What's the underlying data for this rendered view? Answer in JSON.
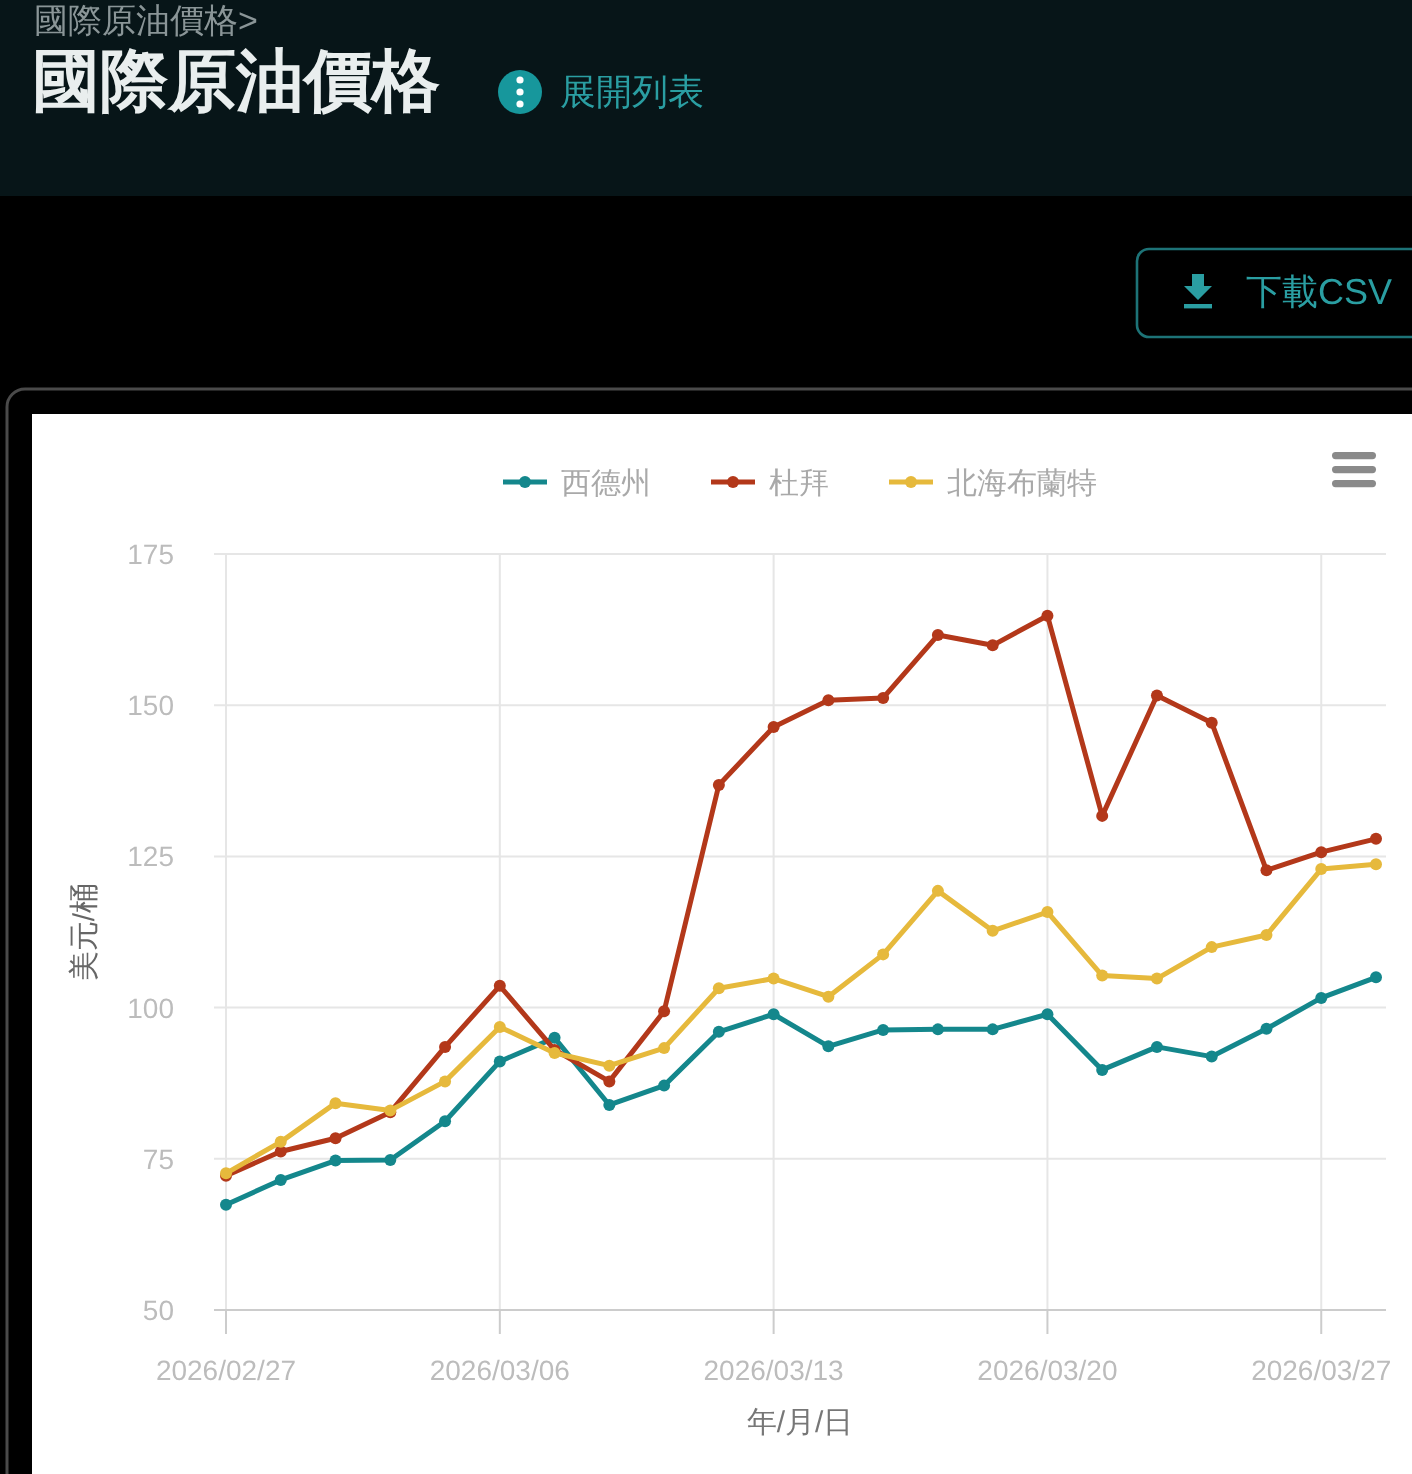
{
  "chart_data": {
    "type": "line",
    "title": "國際原油價格",
    "annotations": [
      "國際原油價格>",
      "展開列表",
      "下載CSV"
    ],
    "xlabel": "年/月/日",
    "ylabel": "美元/桶",
    "categories": [
      "2026/02/27",
      null,
      null,
      null,
      null,
      "2026/03/06",
      null,
      null,
      null,
      null,
      "2026/03/13",
      null,
      null,
      null,
      null,
      "2026/03/20",
      null,
      null,
      null,
      null,
      "2026/03/27",
      null
    ],
    "series": [
      {
        "name": "西德州",
        "color": "#14878c",
        "values": [
          67.4,
          71.5,
          74.7,
          74.8,
          81.2,
          91.1,
          95.0,
          83.9,
          87.1,
          96.0,
          98.9,
          93.6,
          96.3,
          96.4,
          96.4,
          98.9,
          89.7,
          93.5,
          91.9,
          96.5,
          101.6,
          105.0
        ]
      },
      {
        "name": "杜拜",
        "color": "#b3381a",
        "values": [
          72.2,
          76.2,
          78.4,
          82.7,
          93.5,
          103.6,
          93.0,
          87.8,
          99.4,
          136.8,
          146.4,
          150.8,
          151.2,
          161.6,
          159.9,
          164.8,
          131.7,
          151.6,
          147.1,
          122.7,
          125.7,
          127.9
        ]
      },
      {
        "name": "北海布蘭特",
        "color": "#e6b93c",
        "values": [
          72.6,
          77.8,
          84.2,
          83.0,
          87.8,
          96.8,
          92.5,
          90.4,
          93.3,
          103.2,
          104.8,
          101.8,
          108.8,
          119.3,
          112.7,
          115.8,
          105.3,
          104.8,
          110.0,
          112.0,
          122.9,
          123.7
        ]
      }
    ],
    "ylim": [
      50,
      175
    ],
    "yticks": [
      50,
      75,
      100,
      125,
      150,
      175
    ],
    "grid": true,
    "legend": "top",
    "marker": "circle",
    "line_style": "solid"
  }
}
